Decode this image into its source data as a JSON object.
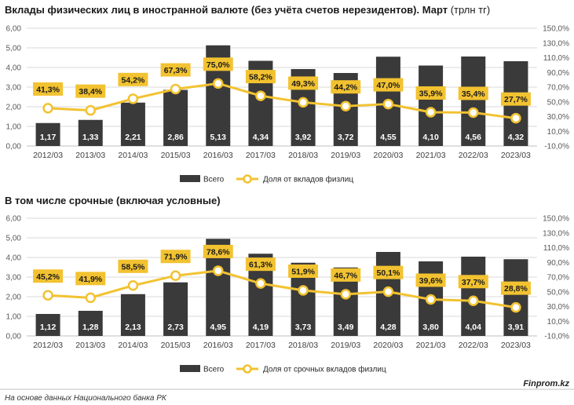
{
  "colors": {
    "bar": "#3a3a3a",
    "line": "#f2c230",
    "marker_fill": "#ffffff",
    "label_box": "#f2c230",
    "grid": "#d9d9d9"
  },
  "chart_data": [
    {
      "type": "bar",
      "title": "Вклады физических лиц в иностранной валюте (без учёта счетов нерезидентов). Март",
      "title_unit": "(трлн тг)",
      "categories": [
        "2012/03",
        "2013/03",
        "2014/03",
        "2015/03",
        "2016/03",
        "2017/03",
        "2018/03",
        "2019/03",
        "2020/03",
        "2021/03",
        "2022/03",
        "2023/03"
      ],
      "series": [
        {
          "name": "Всего",
          "kind": "bar",
          "values": [
            1.17,
            1.33,
            2.21,
            2.86,
            5.13,
            4.34,
            3.92,
            3.72,
            4.55,
            4.1,
            4.56,
            4.32
          ],
          "labels": [
            "1,17",
            "1,33",
            "2,21",
            "2,86",
            "5,13",
            "4,34",
            "3,92",
            "3,72",
            "4,55",
            "4,10",
            "4,56",
            "4,32"
          ]
        },
        {
          "name": "Доля от вкладов физлиц",
          "kind": "line",
          "axis": "right",
          "values": [
            41.3,
            38.4,
            54.2,
            67.3,
            75.0,
            58.2,
            49.3,
            44.2,
            47.0,
            35.9,
            35.4,
            27.7
          ],
          "labels": [
            "41,3%",
            "38,4%",
            "54,2%",
            "67,3%",
            "75,0%",
            "58,2%",
            "49,3%",
            "44,2%",
            "47,0%",
            "35,9%",
            "35,4%",
            "27,7%"
          ]
        }
      ],
      "ylim": [
        0,
        6
      ],
      "yticks": [
        "0,00",
        "1,00",
        "2,00",
        "3,00",
        "4,00",
        "5,00",
        "6,00"
      ],
      "y2lim": [
        -10,
        150
      ],
      "y2ticks": [
        "-10,0%",
        "10,0%",
        "30,0%",
        "50,0%",
        "70,0%",
        "90,0%",
        "110,0%",
        "130,0%",
        "150,0%"
      ],
      "legend": [
        "Всего",
        "Доля от вкладов физлиц"
      ],
      "legend_position": "bottom"
    },
    {
      "type": "bar",
      "title": "В том числе срочные (включая условные)",
      "title_unit": "",
      "categories": [
        "2012/03",
        "2013/03",
        "2014/03",
        "2015/03",
        "2016/03",
        "2017/03",
        "2018/03",
        "2019/03",
        "2020/03",
        "2021/03",
        "2022/03",
        "2023/03"
      ],
      "series": [
        {
          "name": "Всего",
          "kind": "bar",
          "values": [
            1.12,
            1.28,
            2.13,
            2.73,
            4.95,
            4.19,
            3.73,
            3.49,
            4.28,
            3.8,
            4.04,
            3.91
          ],
          "labels": [
            "1,12",
            "1,28",
            "2,13",
            "2,73",
            "4,95",
            "4,19",
            "3,73",
            "3,49",
            "4,28",
            "3,80",
            "4,04",
            "3,91"
          ]
        },
        {
          "name": "Доля от срочных вкладов физлиц",
          "kind": "line",
          "axis": "right",
          "values": [
            45.2,
            41.9,
            58.5,
            71.9,
            78.6,
            61.3,
            51.9,
            46.7,
            50.1,
            39.6,
            37.7,
            28.8
          ],
          "labels": [
            "45,2%",
            "41,9%",
            "58,5%",
            "71,9%",
            "78,6%",
            "61,3%",
            "51,9%",
            "46,7%",
            "50,1%",
            "39,6%",
            "37,7%",
            "28,8%"
          ]
        }
      ],
      "ylim": [
        0,
        6
      ],
      "yticks": [
        "0,00",
        "1,00",
        "2,00",
        "3,00",
        "4,00",
        "5,00",
        "6,00"
      ],
      "y2lim": [
        -10,
        150
      ],
      "y2ticks": [
        "-10,0%",
        "10,0%",
        "30,0%",
        "50,0%",
        "70,0%",
        "90,0%",
        "110,0%",
        "130,0%",
        "150,0%"
      ],
      "legend": [
        "Всего",
        "Доля от срочных вкладов физлиц"
      ],
      "legend_position": "bottom"
    }
  ],
  "footer": {
    "source": "На основе данных Национального банка РК",
    "brand": "Finprom.kz"
  }
}
